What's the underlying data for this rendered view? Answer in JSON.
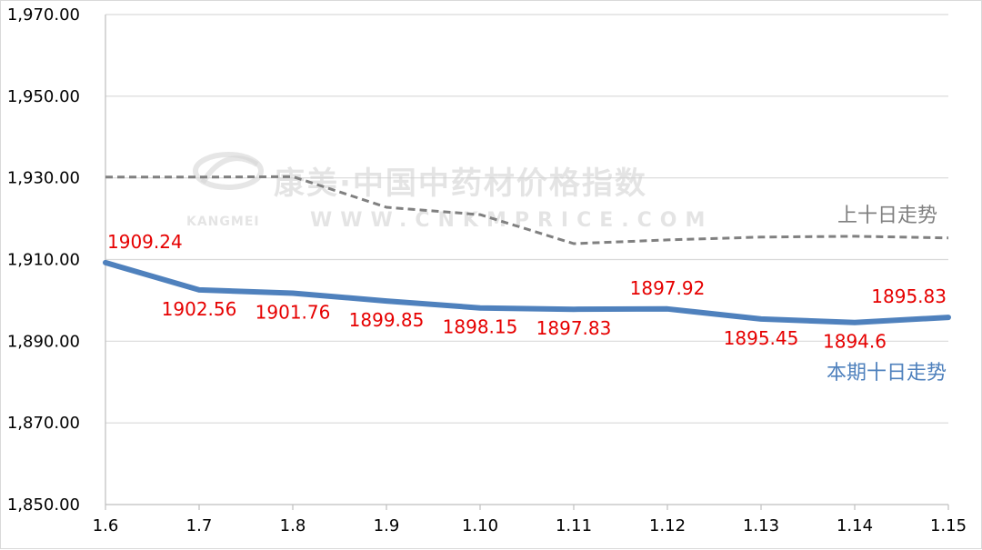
{
  "watermark": {
    "text_cn": "康美·中国中药材价格指数",
    "text_en": "KANGMEI  WWW.CNKMPRICE.COM",
    "logo": "kangmei-logo-icon"
  },
  "colors": {
    "current": "#4f81bd",
    "previous": "#808080",
    "data_label": "#e60000",
    "grid": "#d9d9d9",
    "axis": "#bfbfbf"
  },
  "chart_data": {
    "type": "line",
    "title": "",
    "xlabel": "",
    "ylabel": "",
    "categories": [
      "1.6",
      "1.7",
      "1.8",
      "1.9",
      "1.10",
      "1.11",
      "1.12",
      "1.13",
      "1.14",
      "1.15"
    ],
    "ylim": [
      1850,
      1970
    ],
    "yticks": [
      "1,850.00",
      "1,870.00",
      "1,890.00",
      "1,910.00",
      "1,930.00",
      "1,950.00",
      "1,970.00"
    ],
    "grid": true,
    "series": [
      {
        "name": "本期十日走势",
        "style": "solid",
        "values": [
          1909.24,
          1902.56,
          1901.76,
          1899.85,
          1898.15,
          1897.83,
          1897.92,
          1895.45,
          1894.6,
          1895.83
        ],
        "data_labels": [
          "1909.24",
          "1902.56",
          "1901.76",
          "1899.85",
          "1898.15",
          "1897.83",
          "1897.92",
          "1895.45",
          "1894.6",
          "1895.83"
        ]
      },
      {
        "name": "上十日走势",
        "style": "dashed",
        "values": [
          1930.2,
          1930.2,
          1930.3,
          1922.8,
          1921.0,
          1913.9,
          1914.8,
          1915.5,
          1915.7,
          1915.3
        ]
      }
    ]
  }
}
